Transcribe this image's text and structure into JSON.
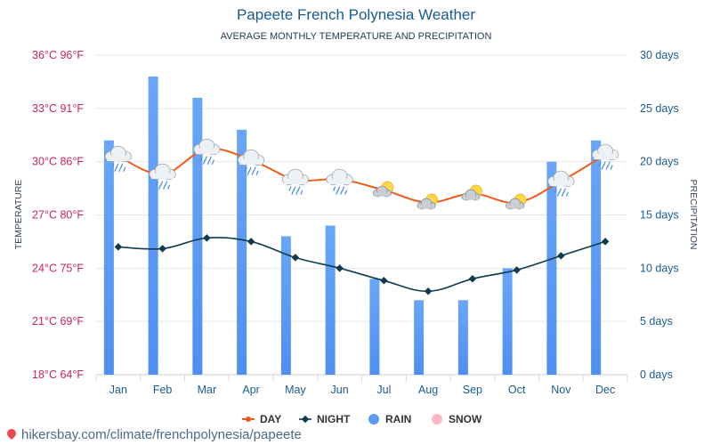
{
  "header": {
    "title": "Papeete French Polynesia Weather",
    "subtitle": "AVERAGE MONTHLY TEMPERATURE AND PRECIPITATION"
  },
  "footer": {
    "source": "hikersbay.com/climate/frenchpolynesia/papeete"
  },
  "colors": {
    "day": "#f05a1a",
    "night": "#0e3b4f",
    "rain": "#5b9cf5",
    "snow": "#ffb7c5",
    "left_axis": "#c8255a",
    "right_axis": "#1a5c8e",
    "month_labels": "#1a5c8e",
    "grid": "#e6e6e6"
  },
  "chart_data": {
    "type": "bar",
    "categories": [
      "Jan",
      "Feb",
      "Mar",
      "Apr",
      "May",
      "Jun",
      "Jul",
      "Aug",
      "Sep",
      "Oct",
      "Nov",
      "Dec"
    ],
    "left_axis": {
      "label": "TEMPERATURE",
      "range_celsius": [
        18,
        36
      ],
      "ticks": [
        "18°C 64°F",
        "21°C 69°F",
        "24°C 75°F",
        "27°C 80°F",
        "30°C 86°F",
        "33°C 91°F",
        "36°C 96°F"
      ]
    },
    "right_axis": {
      "label": "PRECIPITATION",
      "range_days": [
        0,
        30
      ],
      "ticks": [
        "0 days",
        "5 days",
        "10 days",
        "15 days",
        "20 days",
        "25 days",
        "30 days"
      ]
    },
    "series": [
      {
        "name": "DAY",
        "kind": "line",
        "axis": "left",
        "values": [
          30.3,
          29.3,
          30.7,
          30.1,
          29.0,
          29.0,
          28.4,
          27.7,
          28.2,
          27.7,
          28.9,
          30.4
        ]
      },
      {
        "name": "NIGHT",
        "kind": "line",
        "axis": "left",
        "values": [
          25.2,
          25.1,
          25.7,
          25.5,
          24.6,
          24.0,
          23.3,
          22.7,
          23.4,
          23.9,
          24.7,
          25.5
        ]
      },
      {
        "name": "RAIN",
        "kind": "bar",
        "axis": "right",
        "values": [
          22,
          28,
          26,
          23,
          13,
          14,
          9,
          7,
          7,
          10,
          20,
          22
        ]
      },
      {
        "name": "SNOW",
        "kind": "bar",
        "axis": "right",
        "values": [
          0,
          0,
          0,
          0,
          0,
          0,
          0,
          0,
          0,
          0,
          0,
          0
        ]
      }
    ],
    "weather_icons": [
      "cloud-rain-icon",
      "cloud-rain-icon",
      "cloud-rain-icon",
      "cloud-rain-icon",
      "cloud-rain-icon",
      "cloud-rain-icon",
      "sun-cloud-icon",
      "sun-cloud-icon",
      "sun-cloud-icon",
      "sun-cloud-icon",
      "cloud-rain-icon",
      "cloud-rain-icon"
    ],
    "grid": true,
    "legend_position": "bottom-center"
  }
}
